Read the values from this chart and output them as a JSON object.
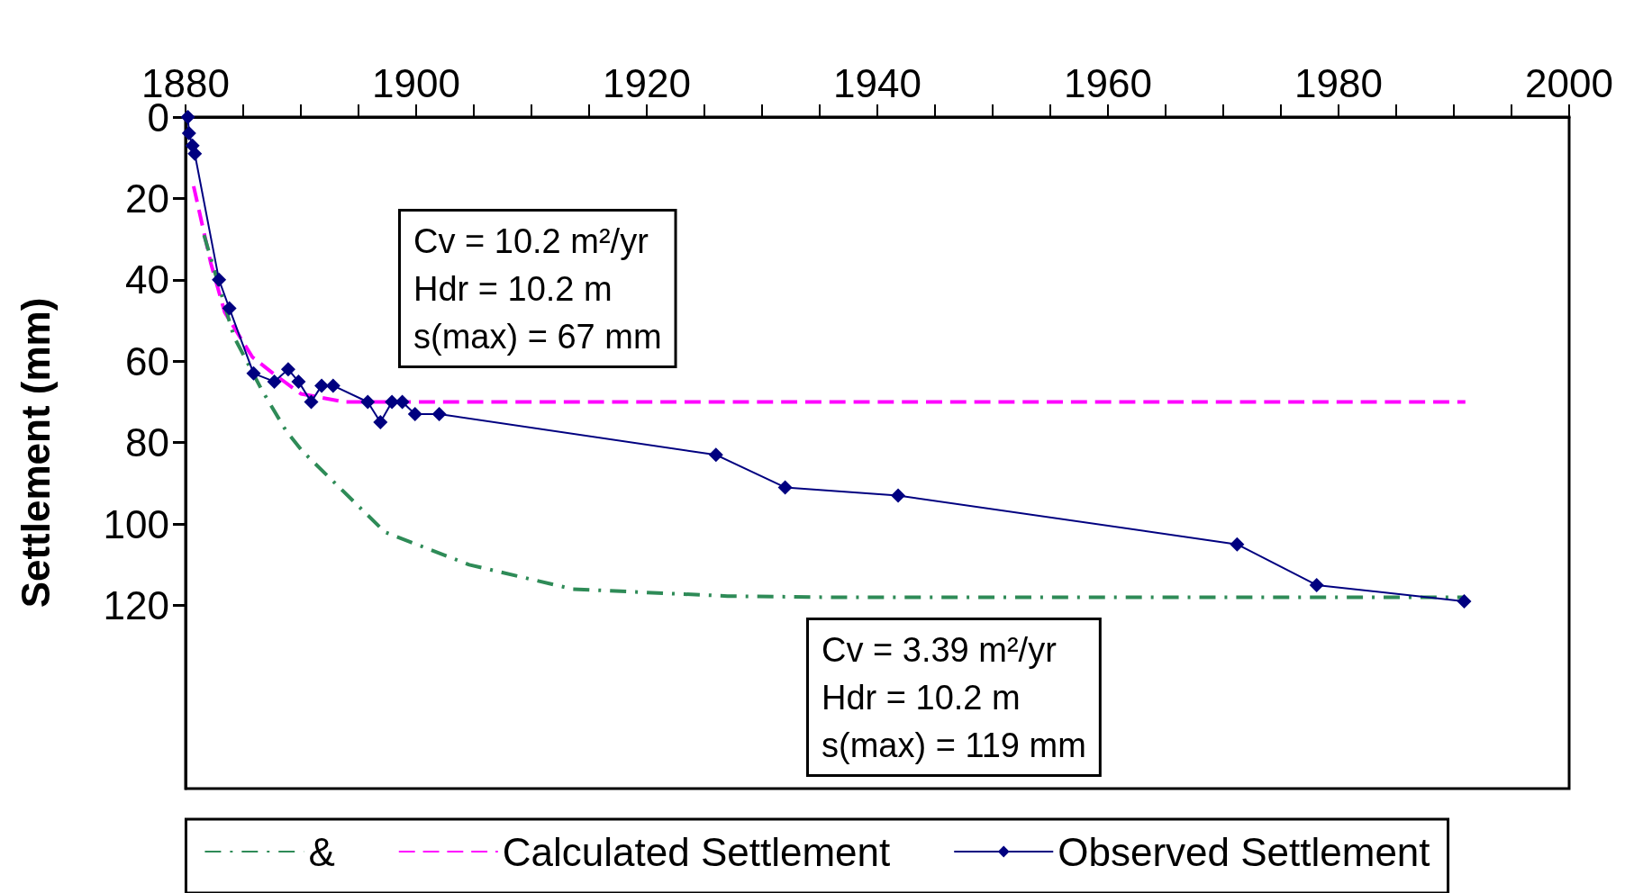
{
  "chart_data": {
    "type": "line",
    "ylabel": "Settlement (mm)",
    "xlim": [
      1880,
      2000
    ],
    "xticks": [
      1880,
      {
        "value": 1885,
        "label": null
      },
      {
        "value": 1890,
        "label": null
      },
      {
        "value": 1895,
        "label": null
      },
      1900,
      {
        "value": 1905,
        "label": null
      },
      {
        "value": 1910,
        "label": null
      },
      {
        "value": 1915,
        "label": null
      },
      1920,
      {
        "value": 1925,
        "label": null
      },
      {
        "value": 1930,
        "label": null
      },
      {
        "value": 1935,
        "label": null
      },
      1940,
      {
        "value": 1945,
        "label": null
      },
      {
        "value": 1950,
        "label": null
      },
      {
        "value": 1955,
        "label": null
      },
      1960,
      {
        "value": 1965,
        "label": null
      },
      {
        "value": 1970,
        "label": null
      },
      {
        "value": 1975,
        "label": null
      },
      1980,
      {
        "value": 1985,
        "label": null
      },
      {
        "value": 1990,
        "label": null
      },
      {
        "value": 1995,
        "label": null
      },
      2000
    ],
    "ylim": [
      165,
      0
    ],
    "yticks": [
      0,
      20,
      40,
      60,
      80,
      100,
      120
    ],
    "grid": false,
    "legend": "bottom",
    "annotations": [
      "Cv = 10.2 m²/yr\nHdr = 10.2 m\ns(max) = 67 mm",
      "Cv = 3.39 m²/yr\nHdr = 10.2 m\ns(max) = 119 mm"
    ],
    "series": [
      {
        "name": "&",
        "color": "#2e8b57",
        "line_style": "dashdot",
        "marker": "none",
        "x": [
          1881.6,
          1884.2,
          1886.6,
          1888.7,
          1890.1,
          1897.3,
          1904.6,
          1913.6,
          1927,
          1936,
          1991
        ],
        "values": [
          29,
          54,
          67,
          77,
          82,
          102,
          110,
          116,
          117.7,
          118,
          118
        ]
      },
      {
        "name": "Calculated Settlement",
        "color": "#ff00ff",
        "line_style": "dashed",
        "marker": "none",
        "x": [
          1880.7,
          1882.2,
          1883.4,
          1885.8,
          1887.6,
          1890,
          1893.8,
          1991
        ],
        "values": [
          17,
          36,
          48,
          59,
          63,
          68,
          70,
          70
        ]
      },
      {
        "name": "Observed Settlement",
        "color": "#000080",
        "line_style": "solid",
        "marker": "diamond",
        "x": [
          1880.2,
          1880.3,
          1880.6,
          1880.8,
          1882.9,
          1883.8,
          1885.9,
          1887.7,
          1888.9,
          1889.8,
          1890.9,
          1891.8,
          1892.8,
          1895.8,
          1896.9,
          1897.9,
          1898.8,
          1899.9,
          1902,
          1926,
          1932,
          1941.8,
          1971.2,
          1978.1,
          1990.9
        ],
        "values": [
          0,
          4,
          7,
          9,
          40,
          47,
          63,
          65,
          62,
          65,
          70,
          66,
          66,
          70,
          75,
          70,
          70,
          73,
          73,
          83,
          91,
          93,
          105,
          115,
          119
        ]
      }
    ]
  }
}
